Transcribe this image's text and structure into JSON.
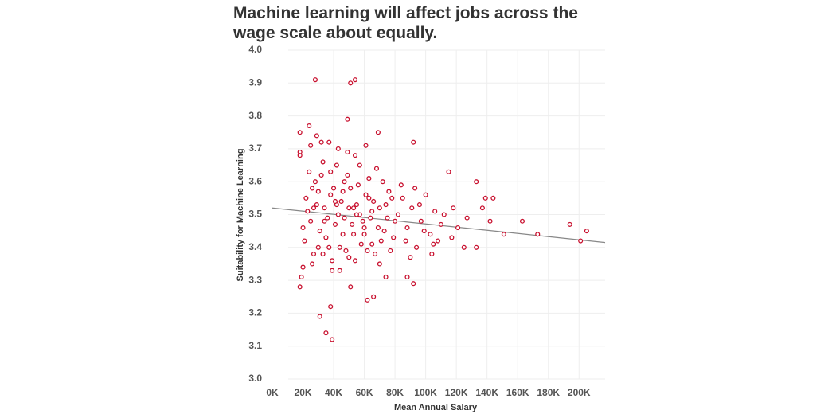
{
  "chart_data": {
    "type": "scatter",
    "title": [
      "Machine learning will affect jobs across the",
      "wage scale about equally."
    ],
    "x_label": "Mean Annual Salary",
    "y_label": "Suitability for Machine Learning",
    "color": "#c8102e",
    "grid": true,
    "xlim": [
      0,
      217000
    ],
    "ylim": [
      3,
      4
    ],
    "xticks": [
      {
        "value": 0,
        "label": "0K"
      },
      {
        "value": 20000,
        "label": "20K"
      },
      {
        "value": 40000,
        "label": "40K"
      },
      {
        "value": 60000,
        "label": "60K"
      },
      {
        "value": 80000,
        "label": "80K"
      },
      {
        "value": 100000,
        "label": "100K"
      },
      {
        "value": 120000,
        "label": "120K"
      },
      {
        "value": 140000,
        "label": "140K"
      },
      {
        "value": 160000,
        "label": "160K"
      },
      {
        "value": 180000,
        "label": "180K"
      },
      {
        "value": 200000,
        "label": "200K"
      }
    ],
    "yticks": [
      {
        "value": 3,
        "label": "3.0"
      },
      3.1,
      3.2,
      3.3,
      3.4,
      3.5,
      3.6,
      3.7,
      3.8,
      3.9,
      {
        "value": 4,
        "label": "4.0"
      }
    ],
    "trendline": {
      "color": "#888888",
      "x": [
        0,
        217000
      ],
      "y": [
        3.52,
        3.415
      ]
    },
    "x": [
      28000,
      51000,
      54000,
      49000,
      24000,
      18000,
      69000,
      92000,
      29000,
      61000,
      18000,
      18000,
      25000,
      32000,
      37000,
      43000,
      49000,
      54000,
      115000,
      133000,
      139000,
      144000,
      137000,
      142000,
      151000,
      163000,
      173000,
      194000,
      201000,
      205000,
      133000,
      125000,
      117000,
      108000,
      105000,
      90000,
      92000,
      88000,
      74000,
      62000,
      51000,
      38000,
      35000,
      39000,
      31000,
      18000,
      19000,
      39000,
      20000,
      66000,
      22000,
      25000,
      28000,
      31000,
      34000,
      37000,
      40000,
      43000,
      46000,
      49000,
      52000,
      55000,
      58000,
      61000,
      64000,
      67000,
      70000,
      73000,
      76000,
      79000,
      82000,
      85000,
      88000,
      91000,
      94000,
      97000,
      100000,
      103000,
      106000,
      110000,
      21000,
      24000,
      27000,
      30000,
      33000,
      36000,
      39000,
      42000,
      45000,
      48000,
      51000,
      54000,
      57000,
      60000,
      63000,
      66000,
      69000,
      72000,
      75000,
      78000,
      23000,
      26000,
      29000,
      32000,
      35000,
      38000,
      41000,
      44000,
      47000,
      50000,
      53000,
      56000,
      59000,
      62000,
      65000,
      68000,
      71000,
      74000,
      77000,
      80000,
      84000,
      87000,
      93000,
      96000,
      99000,
      104000,
      112000,
      118000,
      121000,
      127000,
      26000,
      30000,
      34000,
      38000,
      42000,
      46000,
      50000,
      55000,
      60000,
      65000,
      20000,
      27000,
      33000,
      41000,
      44000,
      47000,
      53000,
      57000,
      63000,
      70000
    ],
    "y": [
      3.91,
      3.9,
      3.91,
      3.79,
      3.77,
      3.75,
      3.75,
      3.72,
      3.74,
      3.71,
      3.69,
      3.68,
      3.71,
      3.72,
      3.72,
      3.7,
      3.69,
      3.68,
      3.63,
      3.6,
      3.55,
      3.55,
      3.52,
      3.48,
      3.44,
      3.48,
      3.44,
      3.47,
      3.42,
      3.45,
      3.4,
      3.4,
      3.43,
      3.42,
      3.41,
      3.37,
      3.29,
      3.31,
      3.31,
      3.24,
      3.28,
      3.22,
      3.14,
      3.12,
      3.19,
      3.28,
      3.31,
      3.33,
      3.34,
      3.25,
      3.55,
      3.48,
      3.6,
      3.45,
      3.52,
      3.4,
      3.58,
      3.5,
      3.44,
      3.62,
      3.47,
      3.53,
      3.41,
      3.56,
      3.49,
      3.38,
      3.52,
      3.45,
      3.57,
      3.43,
      3.5,
      3.55,
      3.46,
      3.52,
      3.4,
      3.48,
      3.56,
      3.44,
      3.51,
      3.47,
      3.42,
      3.63,
      3.38,
      3.57,
      3.66,
      3.49,
      3.36,
      3.65,
      3.54,
      3.39,
      3.58,
      3.36,
      3.5,
      3.44,
      3.61,
      3.54,
      3.46,
      3.6,
      3.49,
      3.55,
      3.51,
      3.35,
      3.53,
      3.62,
      3.43,
      3.56,
      3.47,
      3.33,
      3.6,
      3.52,
      3.44,
      3.59,
      3.48,
      3.39,
      3.51,
      3.64,
      3.42,
      3.53,
      3.39,
      3.48,
      3.59,
      3.42,
      3.58,
      3.53,
      3.45,
      3.38,
      3.5,
      3.52,
      3.46,
      3.49,
      3.58,
      3.4,
      3.48,
      3.63,
      3.53,
      3.57,
      3.37,
      3.5,
      3.46,
      3.41,
      3.46,
      3.52,
      3.38,
      3.54,
      3.4,
      3.49,
      3.52,
      3.65,
      3.55,
      3.35
    ]
  }
}
